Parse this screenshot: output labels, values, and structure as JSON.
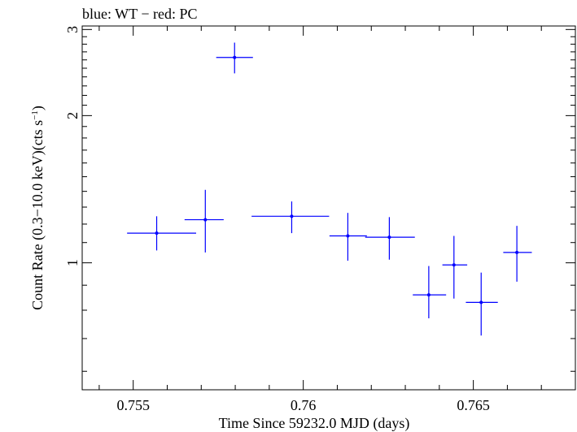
{
  "chart_data": {
    "type": "scatter",
    "title": "blue: WT − red: PC",
    "xlabel": "Time Since 59232.0 MJD (days)",
    "ylabel_main": "Count Rate (0.3−10.0 keV)(cts s",
    "ylabel_sup": "−1",
    "ylabel_close": ")",
    "xlim": [
      0.7535,
      0.768
    ],
    "ylim": [
      0.55,
      3.05
    ],
    "y_scale": "log",
    "x_major_ticks": [
      0.755,
      0.76,
      0.765
    ],
    "x_tick_labels": [
      "0.755",
      "0.76",
      "0.765"
    ],
    "x_minor_step": 0.001,
    "y_major_ticks": [
      1,
      2,
      3
    ],
    "y_tick_labels": [
      "1",
      "2",
      "3"
    ],
    "y_minor_ticks": [
      0.6,
      0.7,
      0.8,
      0.9,
      1.1,
      1.2,
      1.3,
      1.4,
      1.5,
      1.6,
      1.7,
      1.8,
      1.9,
      2.1,
      2.2,
      2.3,
      2.4,
      2.5,
      2.6,
      2.7,
      2.8,
      2.9
    ],
    "grid": false,
    "series": [
      {
        "color": "#0000ff",
        "points": [
          {
            "x": 0.75569,
            "xlo": 0.75482,
            "xhi": 0.75685,
            "y": 1.15,
            "ylo": 1.06,
            "yhi": 1.245
          },
          {
            "x": 0.75712,
            "xlo": 0.75651,
            "xhi": 0.75766,
            "y": 1.225,
            "ylo": 1.05,
            "yhi": 1.41
          },
          {
            "x": 0.75798,
            "xlo": 0.75744,
            "xhi": 0.75852,
            "y": 2.63,
            "ylo": 2.44,
            "yhi": 2.82
          },
          {
            "x": 0.75966,
            "xlo": 0.75848,
            "xhi": 0.76076,
            "y": 1.245,
            "ylo": 1.15,
            "yhi": 1.335
          },
          {
            "x": 0.76131,
            "xlo": 0.76077,
            "xhi": 0.76187,
            "y": 1.135,
            "ylo": 1.01,
            "yhi": 1.265
          },
          {
            "x": 0.76253,
            "xlo": 0.76182,
            "xhi": 0.76328,
            "y": 1.128,
            "ylo": 1.015,
            "yhi": 1.24
          },
          {
            "x": 0.76369,
            "xlo": 0.76322,
            "xhi": 0.7642,
            "y": 0.86,
            "ylo": 0.77,
            "yhi": 0.985
          },
          {
            "x": 0.76443,
            "xlo": 0.76409,
            "xhi": 0.76482,
            "y": 0.99,
            "ylo": 0.845,
            "yhi": 1.135
          },
          {
            "x": 0.76523,
            "xlo": 0.76478,
            "xhi": 0.76572,
            "y": 0.83,
            "ylo": 0.71,
            "yhi": 0.955
          },
          {
            "x": 0.76628,
            "xlo": 0.76588,
            "xhi": 0.76672,
            "y": 1.05,
            "ylo": 0.915,
            "yhi": 1.19
          }
        ]
      }
    ]
  }
}
